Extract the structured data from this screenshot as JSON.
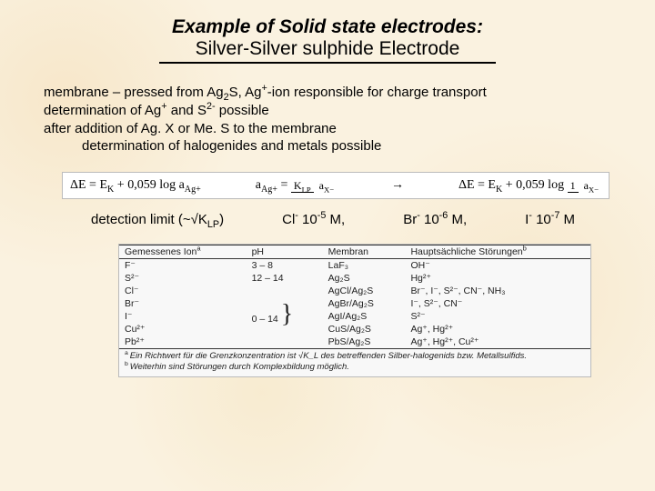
{
  "title": {
    "line1": "Example of Solid state electrodes:",
    "line2": "Silver-Silver sulphide Electrode"
  },
  "body": {
    "l1a": "membrane – pressed from Ag",
    "l1b": "S, Ag",
    "l1c": "-ion responsible for charge transport",
    "l2a": "determination of Ag",
    "l2b": " and S",
    "l2c": " possible",
    "l3": "after addition of Ag. X or Me. S to the membrane",
    "l4": "determination of halogenides and metals possible"
  },
  "equations": {
    "eq1_left": "ΔE = E",
    "eq1_sub": "K",
    "eq1_mid": " + 0,059 log a",
    "eq1_sub2": "Ag+",
    "eq2_lhs": "a",
    "eq2_lhs_sub": "Ag+",
    "eq2_num": "K",
    "eq2_num_sub": "LP",
    "eq2_den": "a",
    "eq2_den_sub": "X−",
    "arrow": "→",
    "eq3_left": "ΔE = E",
    "eq3_mid": " + 0,059 log ",
    "eq3_num": "1",
    "eq3_den": "a",
    "eq3_den_sub": "X−"
  },
  "detection": {
    "label_a": "detection limit (~√",
    "label_b": "K",
    "label_b_sub": "LP",
    "label_c": ")",
    "items": [
      {
        "ion": "Cl",
        "sup": "-",
        "val": " 10",
        "exp": "-5",
        "tail": " M,"
      },
      {
        "ion": "Br",
        "sup": "-",
        "val": " 10",
        "exp": "-6",
        "tail": " M,"
      },
      {
        "ion": "I",
        "sup": "-",
        "val": "  10",
        "exp": "-7",
        "tail": " M"
      }
    ]
  },
  "table": {
    "headers": [
      "Gemessenes Ion",
      "pH",
      "Membran",
      "Hauptsächliche Störungen"
    ],
    "header_sup": [
      "a",
      "",
      "",
      "b"
    ],
    "rows": [
      [
        "F⁻",
        "3 – 8",
        "LaF₃",
        "OH⁻"
      ],
      [
        "S²⁻",
        "12 – 14",
        "Ag₂S",
        "Hg²⁺"
      ],
      [
        "Cl⁻",
        "0 – 14",
        "AgCl/Ag₂S",
        "Br⁻, I⁻, S²⁻, CN⁻, NH₃"
      ],
      [
        "Br⁻",
        "0 – 14",
        "AgBr/Ag₂S",
        "I⁻, S²⁻, CN⁻"
      ],
      [
        "I⁻",
        "0 – 14",
        "AgI/Ag₂S",
        "S²⁻"
      ],
      [
        "Cu²⁺",
        "0 – 14",
        "CuS/Ag₂S",
        "Ag⁺, Hg²⁺"
      ],
      [
        "Pb²⁺",
        "0 – 14",
        "PbS/Ag₂S",
        "Ag⁺, Hg²⁺, Cu²⁺"
      ]
    ],
    "brace_pH": "0 – 14",
    "footnote_a": "Ein Richtwert für die Grenzkonzentration ist √K_L des betreffenden Silber-halogenids bzw. Metallsulfids.",
    "footnote_b_a": "Weiterhin sind Störungen durch ",
    "footnote_b_i": "Komplexbildung",
    "footnote_b_c": " möglich."
  },
  "colors": {
    "bg": "#faf2e0",
    "text": "#000000",
    "table_border": "#333333",
    "eq_bg": "#ffffff"
  }
}
